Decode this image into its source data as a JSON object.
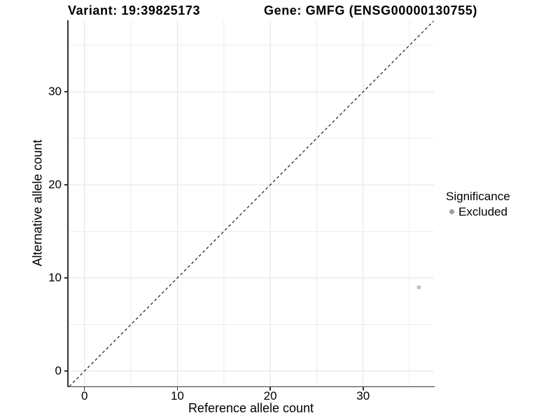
{
  "titles": {
    "variant": "Variant: 19:39825173",
    "gene": "Gene: GMFG (ENSG00000130755)"
  },
  "chart_data": {
    "type": "scatter",
    "title": "Variant: 19:39825173  |  Gene: GMFG (ENSG00000130755)",
    "xlabel": "Reference allele count",
    "ylabel": "Alternative allele count",
    "xlim": [
      -1.79,
      37.63
    ],
    "ylim": [
      -1.65,
      37.6
    ],
    "x_ticks": [
      0,
      10,
      20,
      30
    ],
    "x_minor_ticks": [
      5,
      15,
      25,
      35
    ],
    "y_ticks": [
      0,
      10,
      20,
      30
    ],
    "y_minor_ticks": [
      5,
      15,
      25,
      35
    ],
    "grid": "major+minor",
    "legend_position": "right",
    "identity_line": {
      "equation": "y = x",
      "style": "dashed",
      "color": "#1a1a1a"
    },
    "series": [
      {
        "name": "Excluded",
        "color": "#c2c2c2",
        "points": [
          {
            "x": 36,
            "y": 9
          }
        ]
      }
    ],
    "legend": {
      "title": "Significance",
      "items": [
        {
          "label": "Excluded",
          "dot_color": "#9e9e9e"
        }
      ]
    }
  },
  "colors": {
    "background": "#ffffff",
    "axis_line": "#333333",
    "grid_major": "#e2e2e2",
    "grid_minor": "#ececec",
    "text": "#000000",
    "point": "#c2c2c2"
  }
}
